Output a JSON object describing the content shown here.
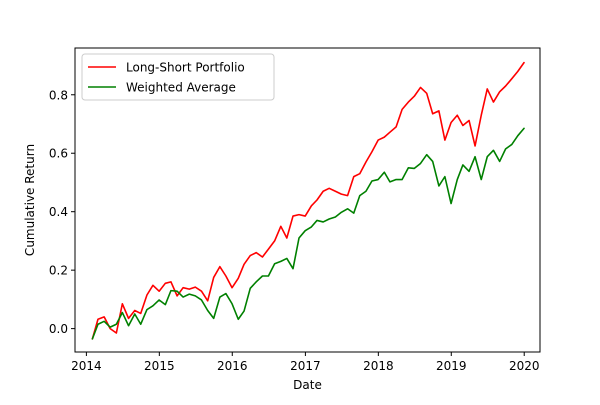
{
  "chart_data": {
    "type": "line",
    "title": "",
    "xlabel": "Date",
    "ylabel": "Cumulative Return",
    "xlim": [
      "2013-11-05",
      "2020-03-20"
    ],
    "ylim": [
      -0.08,
      0.96
    ],
    "x_ticks": [
      {
        "value": "2014-01-01",
        "label": "2014"
      },
      {
        "value": "2015-01-01",
        "label": "2015"
      },
      {
        "value": "2016-01-01",
        "label": "2016"
      },
      {
        "value": "2017-01-01",
        "label": "2017"
      },
      {
        "value": "2018-01-01",
        "label": "2018"
      },
      {
        "value": "2019-01-01",
        "label": "2019"
      },
      {
        "value": "2020-01-01",
        "label": "2020"
      }
    ],
    "y_ticks": [
      {
        "value": 0.0,
        "label": "0.0"
      },
      {
        "value": 0.2,
        "label": "0.2"
      },
      {
        "value": 0.4,
        "label": "0.4"
      },
      {
        "value": 0.6,
        "label": "0.6"
      },
      {
        "value": 0.8,
        "label": "0.8"
      }
    ],
    "grid": false,
    "legend_position": "upper-left",
    "x": [
      "2014-01-31",
      "2014-02-28",
      "2014-03-31",
      "2014-04-30",
      "2014-05-31",
      "2014-06-30",
      "2014-07-31",
      "2014-08-31",
      "2014-09-30",
      "2014-10-31",
      "2014-11-30",
      "2014-12-31",
      "2015-01-31",
      "2015-02-28",
      "2015-03-31",
      "2015-04-30",
      "2015-05-31",
      "2015-06-30",
      "2015-07-31",
      "2015-08-31",
      "2015-09-30",
      "2015-10-31",
      "2015-11-30",
      "2015-12-31",
      "2016-01-31",
      "2016-02-29",
      "2016-03-31",
      "2016-04-30",
      "2016-05-31",
      "2016-06-30",
      "2016-07-31",
      "2016-08-31",
      "2016-09-30",
      "2016-10-31",
      "2016-11-30",
      "2016-12-31",
      "2017-01-31",
      "2017-02-28",
      "2017-03-31",
      "2017-04-30",
      "2017-05-31",
      "2017-06-30",
      "2017-07-31",
      "2017-08-31",
      "2017-09-30",
      "2017-10-31",
      "2017-11-30",
      "2017-12-31",
      "2018-01-31",
      "2018-02-28",
      "2018-03-31",
      "2018-04-30",
      "2018-05-31",
      "2018-06-30",
      "2018-07-31",
      "2018-08-31",
      "2018-09-30",
      "2018-10-31",
      "2018-11-30",
      "2018-12-31",
      "2019-01-31",
      "2019-02-28",
      "2019-03-31",
      "2019-04-30",
      "2019-05-31",
      "2019-06-30",
      "2019-07-31",
      "2019-08-31",
      "2019-09-30",
      "2019-10-31",
      "2019-11-30",
      "2019-12-31"
    ],
    "series": [
      {
        "name": "Long-Short Portfolio",
        "color": "#ff0000",
        "values": [
          -0.035,
          0.032,
          0.04,
          0.0,
          -0.015,
          0.085,
          0.035,
          0.062,
          0.052,
          0.115,
          0.148,
          0.128,
          0.155,
          0.16,
          0.112,
          0.14,
          0.135,
          0.142,
          0.128,
          0.095,
          0.175,
          0.212,
          0.18,
          0.14,
          0.172,
          0.22,
          0.25,
          0.26,
          0.245,
          0.272,
          0.3,
          0.35,
          0.31,
          0.385,
          0.39,
          0.385,
          0.42,
          0.44,
          0.47,
          0.48,
          0.47,
          0.46,
          0.455,
          0.52,
          0.53,
          0.57,
          0.605,
          0.645,
          0.655,
          0.672,
          0.69,
          0.75,
          0.775,
          0.795,
          0.825,
          0.805,
          0.735,
          0.745,
          0.645,
          0.705,
          0.73,
          0.695,
          0.712,
          0.625,
          0.73,
          0.82,
          0.775,
          0.81,
          0.83,
          0.855,
          0.88,
          0.91
        ]
      },
      {
        "name": "Weighted Average",
        "color": "#008000",
        "values": [
          -0.035,
          0.015,
          0.025,
          0.005,
          0.015,
          0.055,
          0.01,
          0.05,
          0.015,
          0.065,
          0.078,
          0.098,
          0.082,
          0.13,
          0.128,
          0.108,
          0.118,
          0.112,
          0.098,
          0.062,
          0.035,
          0.108,
          0.12,
          0.085,
          0.032,
          0.06,
          0.138,
          0.16,
          0.18,
          0.18,
          0.222,
          0.23,
          0.24,
          0.205,
          0.31,
          0.335,
          0.348,
          0.37,
          0.365,
          0.375,
          0.382,
          0.398,
          0.41,
          0.395,
          0.455,
          0.47,
          0.505,
          0.51,
          0.535,
          0.502,
          0.51,
          0.51,
          0.55,
          0.548,
          0.565,
          0.595,
          0.572,
          0.488,
          0.52,
          0.428,
          0.51,
          0.56,
          0.538,
          0.588,
          0.51,
          0.588,
          0.61,
          0.572,
          0.615,
          0.63,
          0.66,
          0.685
        ]
      }
    ]
  }
}
